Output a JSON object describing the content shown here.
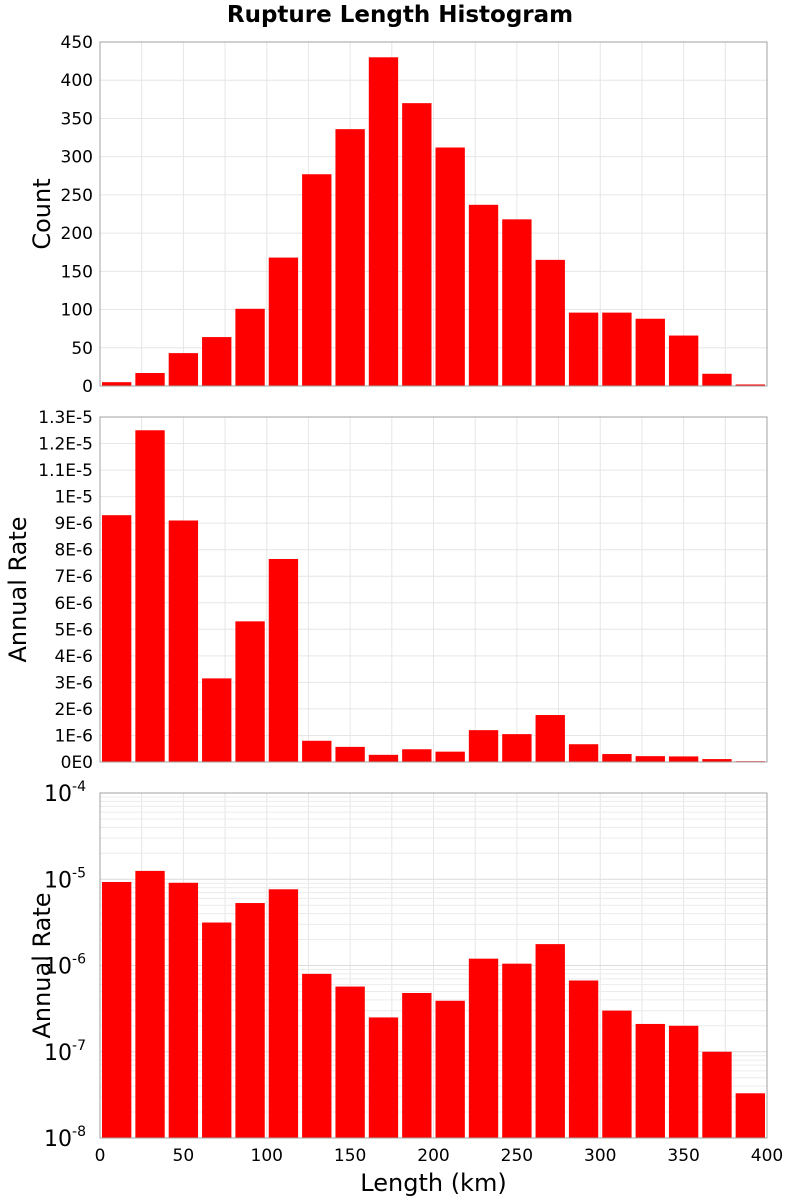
{
  "title": "Rupture Length Histogram",
  "chart_data": [
    {
      "type": "bar",
      "bin_width": 20,
      "x": [
        10,
        30,
        50,
        70,
        90,
        110,
        130,
        150,
        170,
        190,
        210,
        230,
        250,
        270,
        290,
        310,
        330,
        350,
        370,
        390
      ],
      "values": [
        5,
        17,
        43,
        64,
        101,
        168,
        277,
        336,
        430,
        370,
        312,
        237,
        218,
        165,
        96,
        96,
        88,
        66,
        16,
        2
      ],
      "ylabel": "Count",
      "xlabel": "",
      "xlim": [
        0,
        400
      ],
      "ylim": [
        0,
        450
      ],
      "yticks": [
        0,
        50,
        100,
        150,
        200,
        250,
        300,
        350,
        400,
        450
      ],
      "ytick_labels": [
        "0",
        "50",
        "100",
        "150",
        "200",
        "250",
        "300",
        "350",
        "400",
        "450"
      ],
      "color": "#ff0000",
      "grid": true
    },
    {
      "type": "bar",
      "bin_width": 20,
      "x": [
        10,
        30,
        50,
        70,
        90,
        110,
        130,
        150,
        170,
        190,
        210,
        230,
        250,
        270,
        290,
        310,
        330,
        350,
        370,
        390
      ],
      "values": [
        9.3e-06,
        1.25e-05,
        9.1e-06,
        3.15e-06,
        5.3e-06,
        7.65e-06,
        8e-07,
        5.7e-07,
        2.7e-07,
        4.8e-07,
        3.9e-07,
        1.2e-06,
        1.05e-06,
        1.77e-06,
        6.7e-07,
        3e-07,
        2.2e-07,
        2.1e-07,
        1.1e-07,
        3e-08
      ],
      "ylabel": "Annual Rate",
      "xlabel": "",
      "xlim": [
        0,
        400
      ],
      "ylim": [
        0,
        1.3e-05
      ],
      "yticks": [
        0,
        1e-06,
        2e-06,
        3e-06,
        4e-06,
        5e-06,
        6e-06,
        7e-06,
        8e-06,
        9e-06,
        1e-05,
        1.1e-05,
        1.2e-05,
        1.3e-05
      ],
      "ytick_labels": [
        "0E0",
        "1E-6",
        "2E-6",
        "3E-6",
        "4E-6",
        "5E-6",
        "6E-6",
        "7E-6",
        "8E-6",
        "9E-6",
        "1E-5",
        "1.1E-5",
        "1.2E-5",
        "1.3E-5"
      ],
      "color": "#ff0000",
      "grid": true
    },
    {
      "type": "bar",
      "bin_width": 20,
      "x": [
        10,
        30,
        50,
        70,
        90,
        110,
        130,
        150,
        170,
        190,
        210,
        230,
        250,
        270,
        290,
        310,
        330,
        350,
        370,
        390
      ],
      "values": [
        9.3e-06,
        1.25e-05,
        9.1e-06,
        3.15e-06,
        5.3e-06,
        7.65e-06,
        8e-07,
        5.7e-07,
        2.5e-07,
        4.8e-07,
        3.9e-07,
        1.2e-06,
        1.05e-06,
        1.77e-06,
        6.7e-07,
        3e-07,
        2.1e-07,
        2e-07,
        1e-07,
        3.3e-08
      ],
      "ylabel": "Annual Rate",
      "xlabel": "Length (km)",
      "xlim": [
        0,
        400
      ],
      "ylim": [
        1e-08,
        0.0001
      ],
      "yscale": "log",
      "ytick_labels": [
        {
          "base": "10",
          "exp": "-8"
        },
        {
          "base": "10",
          "exp": "-7"
        },
        {
          "base": "10",
          "exp": "-6"
        },
        {
          "base": "10",
          "exp": "-5"
        },
        {
          "base": "10",
          "exp": "-4"
        }
      ],
      "xticks": [
        0,
        50,
        100,
        150,
        200,
        250,
        300,
        350,
        400
      ],
      "xtick_labels": [
        "0",
        "50",
        "100",
        "150",
        "200",
        "250",
        "300",
        "350",
        "400"
      ],
      "color": "#ff0000",
      "grid": true
    }
  ]
}
